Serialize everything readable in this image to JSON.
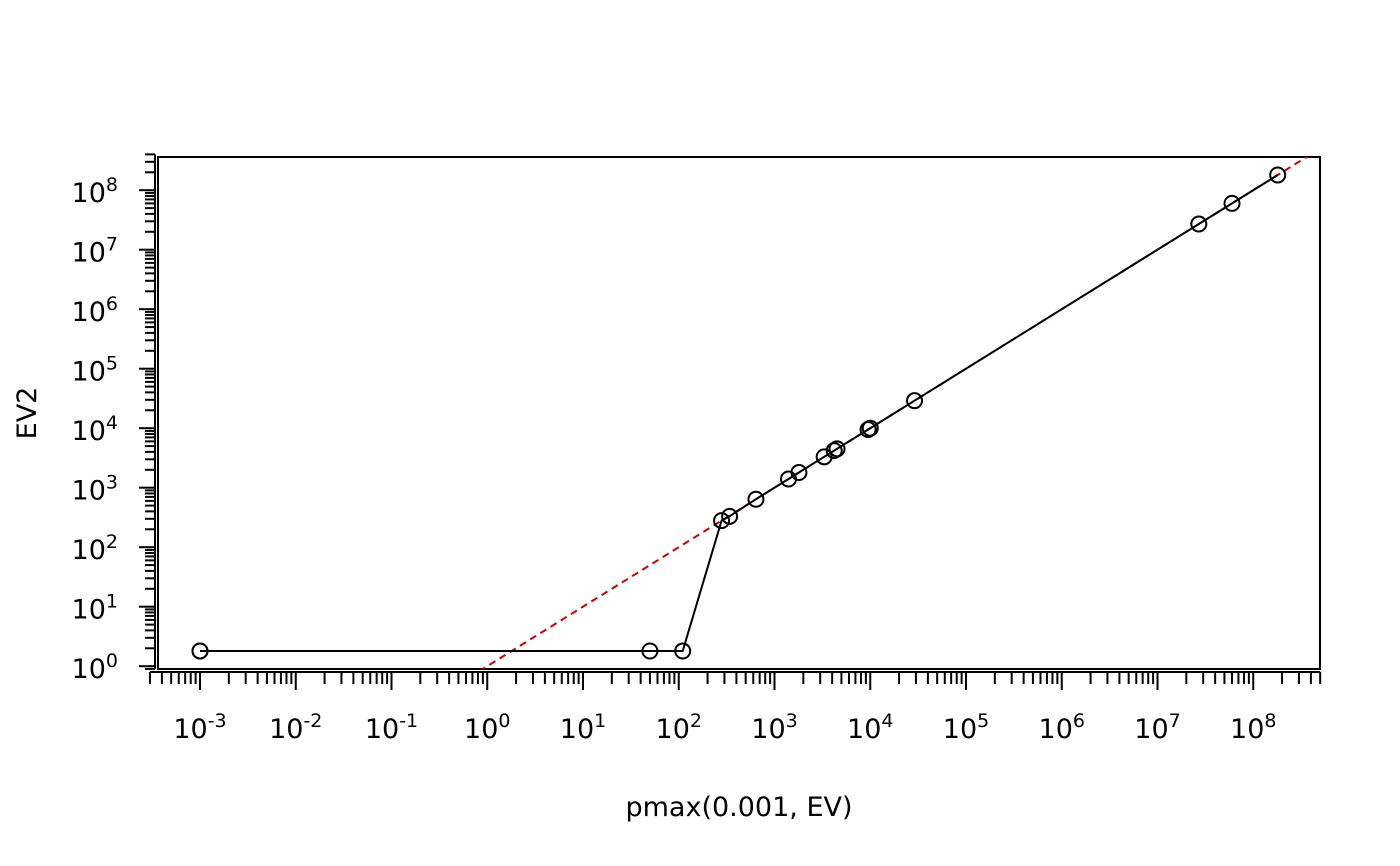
{
  "chart_data": {
    "type": "scatter",
    "title": "",
    "xlabel": "pmax(0.001, EV)",
    "ylabel": "EV2",
    "x_scale": "log10",
    "y_scale": "log10",
    "xlim": [
      0.0003,
      500000000
    ],
    "ylim": [
      0.9,
      400000000
    ],
    "x_ticks": [
      {
        "base": "10",
        "exp": "-3",
        "value": 0.001
      },
      {
        "base": "10",
        "exp": "-2",
        "value": 0.01
      },
      {
        "base": "10",
        "exp": "-1",
        "value": 0.1
      },
      {
        "base": "10",
        "exp": "0",
        "value": 1
      },
      {
        "base": "10",
        "exp": "1",
        "value": 10
      },
      {
        "base": "10",
        "exp": "2",
        "value": 100
      },
      {
        "base": "10",
        "exp": "3",
        "value": 1000
      },
      {
        "base": "10",
        "exp": "4",
        "value": 10000
      },
      {
        "base": "10",
        "exp": "5",
        "value": 100000
      },
      {
        "base": "10",
        "exp": "6",
        "value": 1000000
      },
      {
        "base": "10",
        "exp": "7",
        "value": 10000000
      },
      {
        "base": "10",
        "exp": "8",
        "value": 100000000
      }
    ],
    "y_ticks": [
      {
        "base": "10",
        "exp": "0",
        "value": 1
      },
      {
        "base": "10",
        "exp": "1",
        "value": 10
      },
      {
        "base": "10",
        "exp": "2",
        "value": 100
      },
      {
        "base": "10",
        "exp": "3",
        "value": 1000
      },
      {
        "base": "10",
        "exp": "4",
        "value": 10000
      },
      {
        "base": "10",
        "exp": "5",
        "value": 100000
      },
      {
        "base": "10",
        "exp": "6",
        "value": 1000000
      },
      {
        "base": "10",
        "exp": "7",
        "value": 10000000
      },
      {
        "base": "10",
        "exp": "8",
        "value": 100000000
      }
    ],
    "points": [
      {
        "x": 0.001,
        "y": 1.8
      },
      {
        "x": 0.001,
        "y": 1.8
      },
      {
        "x": 50,
        "y": 1.8
      },
      {
        "x": 110,
        "y": 1.8
      },
      {
        "x": 280,
        "y": 280
      },
      {
        "x": 340,
        "y": 330
      },
      {
        "x": 640,
        "y": 640
      },
      {
        "x": 1400,
        "y": 1400
      },
      {
        "x": 1800,
        "y": 1800
      },
      {
        "x": 3300,
        "y": 3300
      },
      {
        "x": 4200,
        "y": 4200
      },
      {
        "x": 4500,
        "y": 4500
      },
      {
        "x": 9500,
        "y": 9500
      },
      {
        "x": 10000,
        "y": 10000
      },
      {
        "x": 29000,
        "y": 29000
      },
      {
        "x": 27000000,
        "y": 27000000
      },
      {
        "x": 60000000,
        "y": 60000000
      },
      {
        "x": 180000000,
        "y": 180000000
      }
    ],
    "reference_line": {
      "slope": 1,
      "intercept": 0,
      "color": "#cc0000",
      "style": "dashed"
    },
    "point_color": "#000000",
    "line_color": "#000000",
    "grid": false,
    "legend": "none"
  }
}
